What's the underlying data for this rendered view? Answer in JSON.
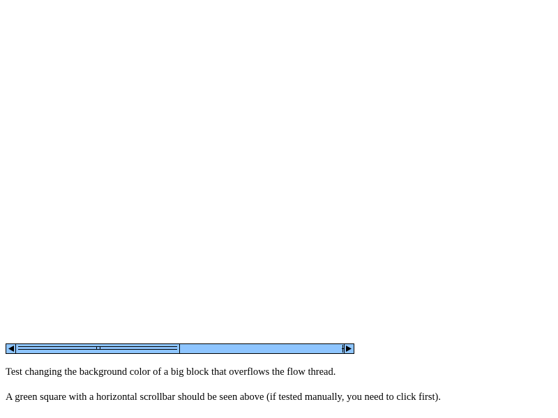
{
  "test": {
    "description": "Test changing the background color of a big block that overflows the flow thread.",
    "expectation": "A green square with a horizontal scrollbar should be seen above (if tested manually, you need to click first)."
  },
  "scrollbar": {
    "orientation": "horizontal",
    "track_color": "#8ec5ff",
    "thumb_position": 0.0,
    "left_arrow_icon": "arrow-left-icon",
    "right_arrow_icon": "arrow-right-icon"
  }
}
